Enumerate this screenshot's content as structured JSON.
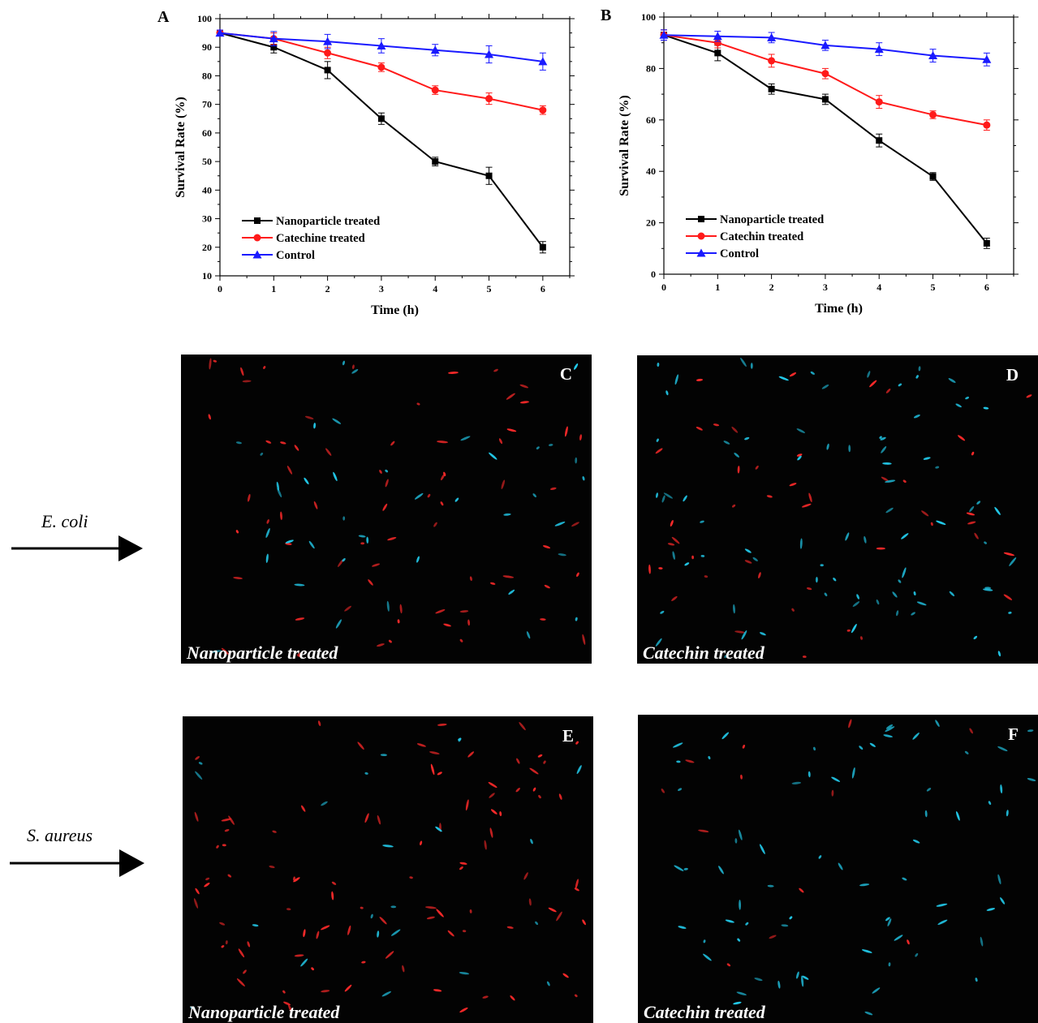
{
  "chart_data": [
    {
      "panel": "A",
      "type": "line",
      "xlabel": "Time (h)",
      "ylabel": "Survival Rate (%)",
      "xlim": [
        0,
        6.5
      ],
      "ylim": [
        10,
        100
      ],
      "x_ticks": [
        0,
        1,
        2,
        3,
        4,
        5,
        6
      ],
      "y_ticks": [
        10,
        20,
        30,
        40,
        50,
        60,
        70,
        80,
        90,
        100
      ],
      "legend_position": "bottom-left",
      "series": [
        {
          "name": "Nanoparticle treated",
          "color": "#000000",
          "marker": "square",
          "x": [
            0,
            1,
            2,
            3,
            4,
            5,
            6
          ],
          "y": [
            95,
            90,
            82,
            65,
            50,
            45,
            20
          ],
          "err": [
            1,
            2,
            3,
            2,
            1.5,
            3,
            2
          ]
        },
        {
          "name": "Catechine treated",
          "color": "#ff1a1a",
          "marker": "circle",
          "x": [
            0,
            1,
            2,
            3,
            4,
            5,
            6
          ],
          "y": [
            95,
            93,
            88,
            83,
            75,
            72,
            68
          ],
          "err": [
            1,
            2,
            2,
            1.5,
            1.5,
            2,
            1.5
          ]
        },
        {
          "name": "Control",
          "color": "#1a1aff",
          "marker": "triangle",
          "x": [
            0,
            1,
            2,
            3,
            4,
            5,
            6
          ],
          "y": [
            95,
            93,
            92,
            90.5,
            89,
            87.5,
            85
          ],
          "err": [
            1,
            2.5,
            2.5,
            2.5,
            2,
            3,
            3
          ]
        }
      ]
    },
    {
      "panel": "B",
      "type": "line",
      "xlabel": "Time (h)",
      "ylabel": "Survival Rate (%)",
      "xlim": [
        0,
        6.5
      ],
      "ylim": [
        0,
        100
      ],
      "x_ticks": [
        0,
        1,
        2,
        3,
        4,
        5,
        6
      ],
      "y_ticks": [
        0,
        20,
        40,
        60,
        80,
        100
      ],
      "legend_position": "bottom-left",
      "series": [
        {
          "name": "Nanoparticle treated",
          "color": "#000000",
          "marker": "square",
          "x": [
            0,
            1,
            2,
            3,
            4,
            5,
            6
          ],
          "y": [
            93,
            86,
            72,
            68,
            52,
            38,
            12
          ],
          "err": [
            2,
            3,
            2,
            2,
            2.5,
            1.5,
            2
          ]
        },
        {
          "name": "Catechin treated",
          "color": "#ff1a1a",
          "marker": "circle",
          "x": [
            0,
            1,
            2,
            3,
            4,
            5,
            6
          ],
          "y": [
            93,
            90,
            83,
            78,
            67,
            62,
            58
          ],
          "err": [
            2,
            2,
            2.5,
            2,
            2.5,
            1.5,
            2
          ]
        },
        {
          "name": "Control",
          "color": "#1a1aff",
          "marker": "triangle",
          "x": [
            0,
            1,
            2,
            3,
            4,
            5,
            6
          ],
          "y": [
            93,
            92.5,
            92,
            89,
            87.5,
            85,
            83.5
          ],
          "err": [
            2,
            2,
            2,
            2,
            2.5,
            2.5,
            2.5
          ]
        }
      ]
    }
  ],
  "micrographs": [
    {
      "letter": "C",
      "caption": "Nanoparticle treated",
      "dots": {
        "red": 70,
        "cyan": 40,
        "seed": 11
      }
    },
    {
      "letter": "D",
      "caption": "Catechin treated",
      "dots": {
        "red": 45,
        "cyan": 80,
        "seed": 23
      }
    },
    {
      "letter": "E",
      "caption": "Nanoparticle treated",
      "dots": {
        "red": 95,
        "cyan": 22,
        "seed": 37
      }
    },
    {
      "letter": "F",
      "caption": "Catechin treated",
      "dots": {
        "red": 12,
        "cyan": 70,
        "seed": 53
      }
    }
  ],
  "organisms": {
    "ecoli": "E. coli",
    "saureus": "S. aureus"
  },
  "colors": {
    "live": "#22c8e8",
    "dead": "#ff2a2a",
    "background": "#030303"
  }
}
